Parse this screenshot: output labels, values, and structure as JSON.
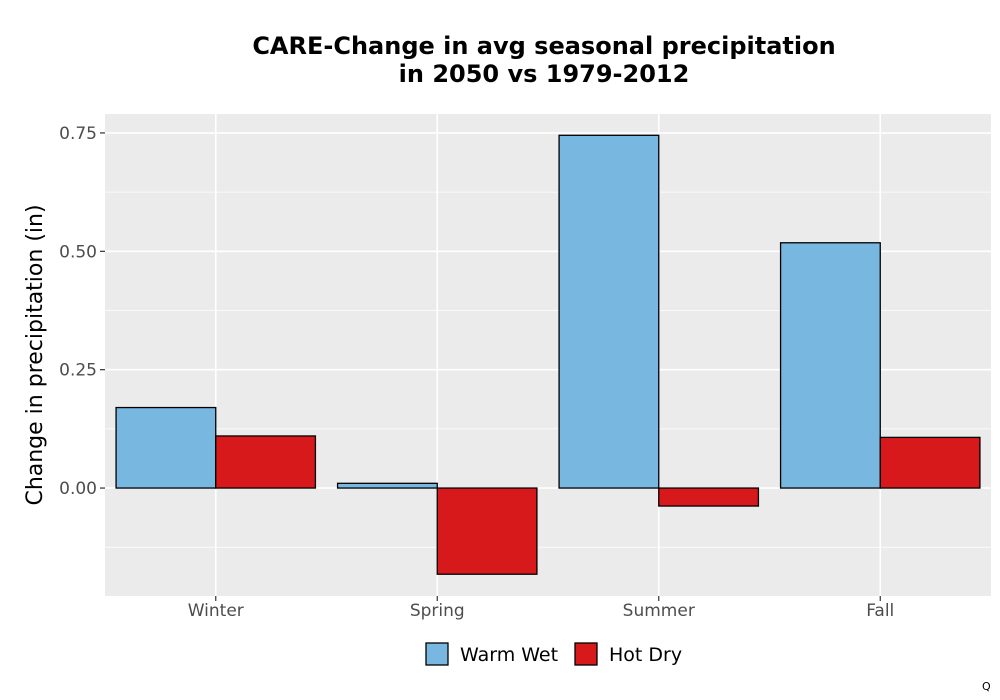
{
  "chart_data": {
    "type": "bar",
    "title": [
      "CARE-Change in avg seasonal precipitation",
      "in 2050 vs 1979-2012"
    ],
    "xlabel": "",
    "ylabel": "Change in precipitation (in)",
    "categories": [
      "Winter",
      "Spring",
      "Summer",
      "Fall"
    ],
    "series": [
      {
        "name": "Warm Wet",
        "color": "#78b7e0",
        "values": [
          0.17,
          0.01,
          0.745,
          0.518
        ]
      },
      {
        "name": "Hot Dry",
        "color": "#d7191c",
        "values": [
          0.11,
          -0.182,
          -0.038,
          0.107
        ]
      }
    ],
    "ylim": [
      -0.228,
      0.79
    ],
    "yticks": [
      0.0,
      0.25,
      0.5,
      0.75
    ],
    "ytick_labels": [
      "0.00",
      "0.25",
      "0.50",
      "0.75"
    ],
    "grid": true,
    "legend_position": "bottom",
    "background": "#ebebeb"
  },
  "corner_mark": "Q"
}
